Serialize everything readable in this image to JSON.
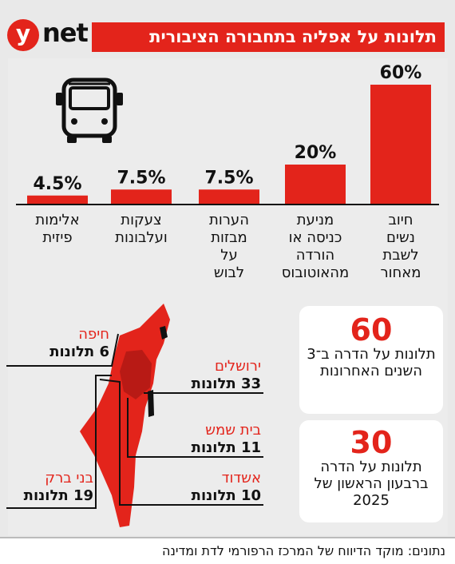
{
  "header": {
    "logo_y": "y",
    "logo_net": "net",
    "title": "תלונות על אפליה בתחבורה הציבורית"
  },
  "chart_data": {
    "type": "bar",
    "categories": [
      "חיוב נשים לשבת מאחור",
      "מניעת כניסה או הורדה מהאוטובוס",
      "הערות מבזות על לבוש",
      "צעקות ועלבונות",
      "אלימות פיזית"
    ],
    "category_lines": [
      [
        "חיוב",
        "נשים",
        "לשבת",
        "מאחור"
      ],
      [
        "מניעת",
        "כניסה או",
        "הורדה",
        "מהאוטובוס"
      ],
      [
        "הערות",
        "מבזות",
        "על",
        "לבוש"
      ],
      [
        "צעקות",
        "ועלבונות"
      ],
      [
        "אלימות",
        "פיזית"
      ]
    ],
    "values": [
      60,
      20,
      7.5,
      7.5,
      4.5
    ],
    "labels": [
      "60%",
      "20%",
      "7.5%",
      "7.5%",
      "4.5%"
    ],
    "ylim": [
      0,
      60
    ],
    "color": "#e3241b"
  },
  "icons": {
    "bus": "bus-icon"
  },
  "cards": [
    {
      "num": "60",
      "text": "תלונות על הדרה ב־3 השנים האחרונות"
    },
    {
      "num": "30",
      "text": "תלונות על הדרה ברבעון הראשון של 2025"
    }
  ],
  "map": {
    "labels": [
      {
        "city": "חיפה",
        "count": "6 תלונות"
      },
      {
        "city": "ירושלים",
        "count": "33 תלונות"
      },
      {
        "city": "בית שמש",
        "count": "11 תלונות"
      },
      {
        "city": "אשדוד",
        "count": "10 תלונות"
      },
      {
        "city": "בני ברק",
        "count": "19 תלונות"
      }
    ]
  },
  "footer": {
    "source": "נתונים: מוקד הדיווח של המרכז הרפורמי לדת ומדינה"
  }
}
